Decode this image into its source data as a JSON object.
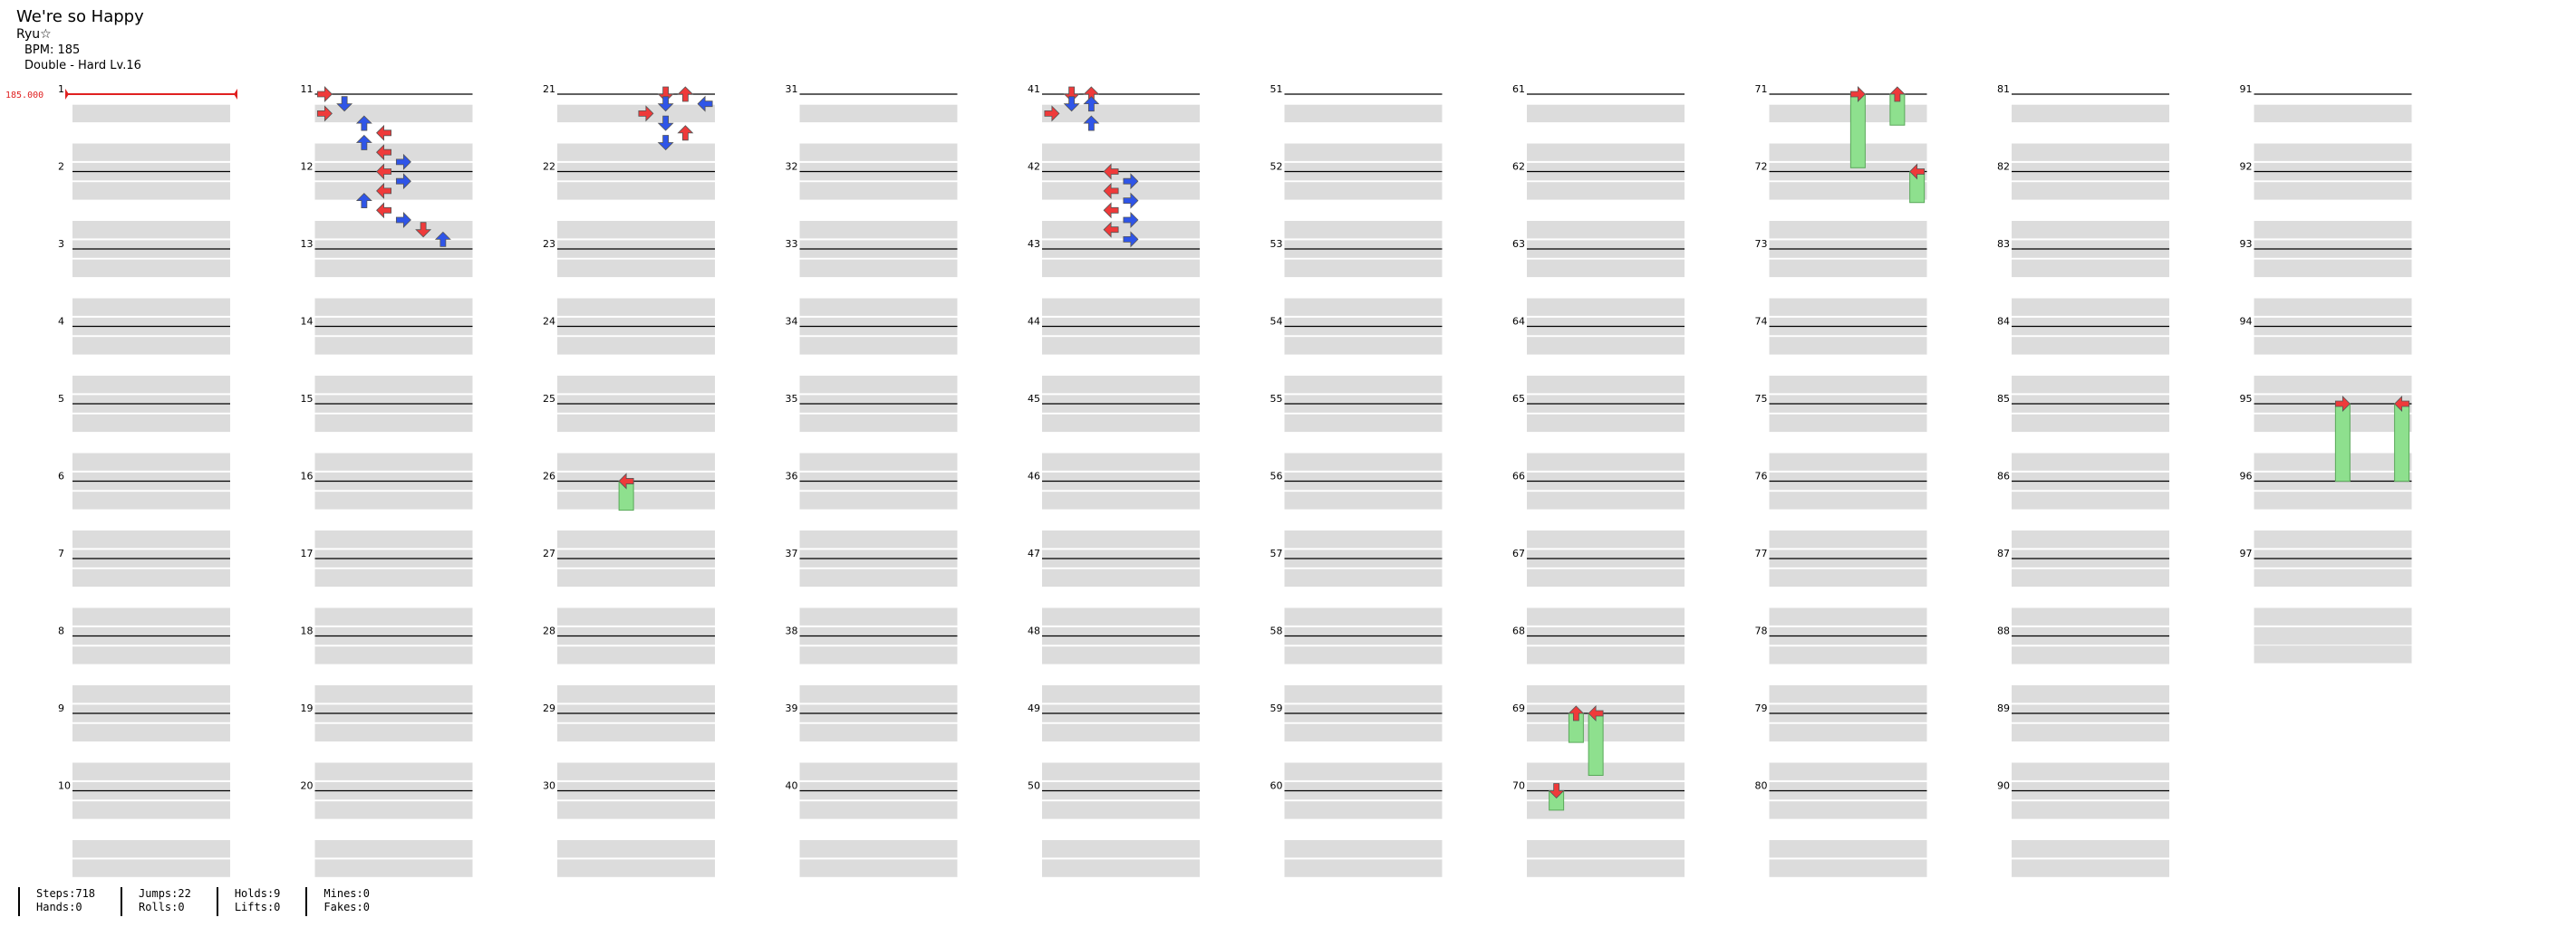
{
  "song": {
    "title": "We're so Happy",
    "artist": "Ryu☆",
    "bpm_label": "BPM: 185",
    "difficulty": "Double - Hard  Lv.16"
  },
  "bpm_marker": {
    "text": "185.000",
    "color": "#e02020"
  },
  "measure_labels": [
    "1",
    "2",
    "3",
    "4",
    "5",
    "6",
    "7",
    "8",
    "9",
    "10",
    "11",
    "12",
    "13",
    "14",
    "15",
    "16",
    "17",
    "18",
    "19",
    "20",
    "21",
    "22",
    "23",
    "24",
    "25",
    "26",
    "27",
    "28",
    "29",
    "30",
    "31",
    "32",
    "33",
    "34",
    "35",
    "36",
    "37",
    "38",
    "39",
    "40",
    "41",
    "42",
    "43",
    "44",
    "45",
    "46",
    "47",
    "48",
    "49",
    "50",
    "51",
    "52",
    "53",
    "54",
    "55",
    "56",
    "57",
    "58",
    "59",
    "60",
    "61",
    "62",
    "63",
    "64",
    "65",
    "66",
    "67",
    "68",
    "69",
    "70",
    "71",
    "72",
    "73",
    "74",
    "75",
    "76",
    "77",
    "78",
    "79",
    "80",
    "81",
    "82",
    "83",
    "84",
    "85",
    "86",
    "87",
    "88",
    "89",
    "90",
    "91",
    "92",
    "93",
    "94",
    "95",
    "96",
    "97"
  ],
  "colors": {
    "red_note": "#ef3a3a",
    "blue_note": "#2f55e8",
    "yellow_note": "#f2e34a",
    "hold_body": "#8ee08e",
    "beat_band": "#dcdcdc",
    "measure_line": "#000000"
  },
  "notes": [
    {
      "measure": 11,
      "beat": 0,
      "lane": 0
    },
    {
      "measure": 11,
      "beat": 0.5,
      "lane": 1
    },
    {
      "measure": 11,
      "beat": 1,
      "lane": 0
    },
    {
      "measure": 11,
      "beat": 1.5,
      "lane": 2
    },
    {
      "measure": 11,
      "beat": 2,
      "lane": 3
    },
    {
      "measure": 11,
      "beat": 2.5,
      "lane": 2
    },
    {
      "measure": 11,
      "beat": 3,
      "lane": 3
    },
    {
      "measure": 11,
      "beat": 3.5,
      "lane": 4
    },
    {
      "measure": 12,
      "beat": 0,
      "lane": 3
    },
    {
      "measure": 12,
      "beat": 0.5,
      "lane": 4
    },
    {
      "measure": 12,
      "beat": 1,
      "lane": 3
    },
    {
      "measure": 12,
      "beat": 1.5,
      "lane": 2
    },
    {
      "measure": 12,
      "beat": 2,
      "lane": 3
    },
    {
      "measure": 12,
      "beat": 2.5,
      "lane": 4
    },
    {
      "measure": 12,
      "beat": 3,
      "lane": 5
    },
    {
      "measure": 12,
      "beat": 3.5,
      "lane": 6
    },
    {
      "measure": 21,
      "beat": 0,
      "lane": 5
    },
    {
      "measure": 21,
      "beat": 0,
      "lane": 6
    },
    {
      "measure": 21,
      "beat": 0.5,
      "lane": 5
    },
    {
      "measure": 21,
      "beat": 0.5,
      "lane": 7
    },
    {
      "measure": 21,
      "beat": 1,
      "lane": 4
    },
    {
      "measure": 21,
      "beat": 1.5,
      "lane": 5
    },
    {
      "measure": 21,
      "beat": 2,
      "lane": 6
    },
    {
      "measure": 21,
      "beat": 2.5,
      "lane": 5
    },
    {
      "measure": 26,
      "beat": 0,
      "lane": 3
    },
    {
      "measure": 26,
      "beat": 0,
      "lane": 3,
      "hold": 1.5
    },
    {
      "measure": 41,
      "beat": 0,
      "lane": 1
    },
    {
      "measure": 41,
      "beat": 0,
      "lane": 2
    },
    {
      "measure": 41,
      "beat": 0.5,
      "lane": 1
    },
    {
      "measure": 41,
      "beat": 0.5,
      "lane": 2
    },
    {
      "measure": 41,
      "beat": 1,
      "lane": 0
    },
    {
      "measure": 41,
      "beat": 1.5,
      "lane": 2
    },
    {
      "measure": 42,
      "beat": 0,
      "lane": 3
    },
    {
      "measure": 42,
      "beat": 0.5,
      "lane": 4
    },
    {
      "measure": 42,
      "beat": 1,
      "lane": 3
    },
    {
      "measure": 42,
      "beat": 1.5,
      "lane": 4
    },
    {
      "measure": 42,
      "beat": 2,
      "lane": 3
    },
    {
      "measure": 42,
      "beat": 2.5,
      "lane": 4
    },
    {
      "measure": 42,
      "beat": 3,
      "lane": 3
    },
    {
      "measure": 42,
      "beat": 3.5,
      "lane": 4
    },
    {
      "measure": 69,
      "beat": 0,
      "lane": 2,
      "hold": 1.5
    },
    {
      "measure": 69,
      "beat": 0,
      "lane": 3,
      "hold": 3.2
    },
    {
      "measure": 70,
      "beat": 0,
      "lane": 1,
      "hold": 1
    },
    {
      "measure": 71,
      "beat": 0,
      "lane": 4,
      "hold": 3.8
    },
    {
      "measure": 71,
      "beat": 0,
      "lane": 6,
      "hold": 1.6
    },
    {
      "measure": 72,
      "beat": 0,
      "lane": 7,
      "hold": 1.6
    },
    {
      "measure": 95,
      "beat": 0,
      "lane": 4,
      "hold": 4
    },
    {
      "measure": 95,
      "beat": 0,
      "lane": 7,
      "hold": 4
    }
  ],
  "stats": [
    {
      "a": "Steps:718",
      "b": "Hands:0"
    },
    {
      "a": "Jumps:22",
      "b": "Rolls:0"
    },
    {
      "a": "Holds:9",
      "b": "Lifts:0"
    },
    {
      "a": "Mines:0",
      "b": "Fakes:0"
    }
  ]
}
